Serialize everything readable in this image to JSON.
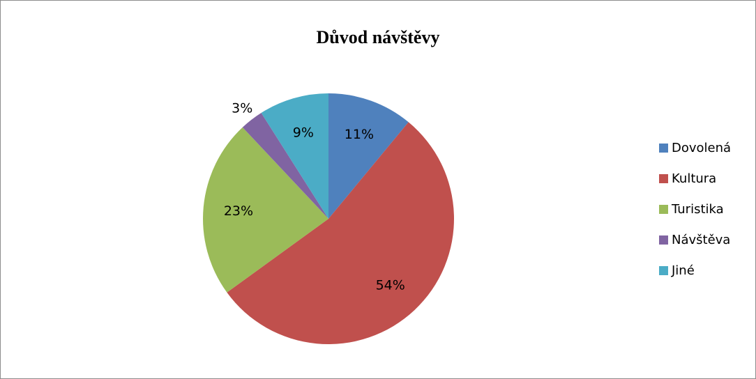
{
  "chart_data": {
    "type": "pie",
    "title": "Důvod návštěvy",
    "categories": [
      "Dovolená",
      "Kultura",
      "Turistika",
      "Návštěva",
      "Jiné"
    ],
    "values": [
      11,
      54,
      23,
      3,
      9
    ],
    "labels": [
      "11%",
      "54%",
      "23%",
      "3%",
      "9%"
    ],
    "colors": [
      "#4f81bd",
      "#c0504d",
      "#9bbb59",
      "#8064a2",
      "#4bacc6"
    ],
    "legend": "right"
  }
}
